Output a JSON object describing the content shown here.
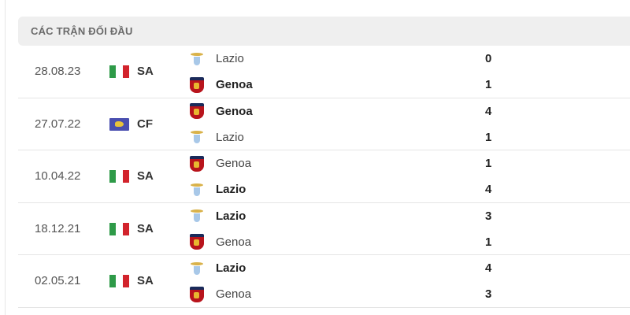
{
  "section_title": "CÁC TRẬN ĐỐI ĐẦU",
  "matches": [
    {
      "date": "28.08.23",
      "flag": "italy",
      "competition": "SA",
      "home": {
        "name": "Lazio",
        "logo": "lazio-icon",
        "score": "0",
        "winner": false
      },
      "away": {
        "name": "Genoa",
        "logo": "genoa-icon",
        "score": "1",
        "winner": true
      }
    },
    {
      "date": "27.07.22",
      "flag": "world",
      "competition": "CF",
      "home": {
        "name": "Genoa",
        "logo": "genoa-icon",
        "score": "4",
        "winner": true
      },
      "away": {
        "name": "Lazio",
        "logo": "lazio-icon",
        "score": "1",
        "winner": false
      }
    },
    {
      "date": "10.04.22",
      "flag": "italy",
      "competition": "SA",
      "home": {
        "name": "Genoa",
        "logo": "genoa-icon",
        "score": "1",
        "winner": false
      },
      "away": {
        "name": "Lazio",
        "logo": "lazio-icon",
        "score": "4",
        "winner": true
      }
    },
    {
      "date": "18.12.21",
      "flag": "italy",
      "competition": "SA",
      "home": {
        "name": "Lazio",
        "logo": "lazio-icon",
        "score": "3",
        "winner": true
      },
      "away": {
        "name": "Genoa",
        "logo": "genoa-icon",
        "score": "1",
        "winner": false
      }
    },
    {
      "date": "02.05.21",
      "flag": "italy",
      "competition": "SA",
      "home": {
        "name": "Lazio",
        "logo": "lazio-icon",
        "score": "4",
        "winner": true
      },
      "away": {
        "name": "Genoa",
        "logo": "genoa-icon",
        "score": "3",
        "winner": false
      }
    }
  ],
  "colors": {
    "italy": [
      "#2e9a48",
      "#ffffff",
      "#d2232c"
    ],
    "header_bg": "#efefef"
  }
}
